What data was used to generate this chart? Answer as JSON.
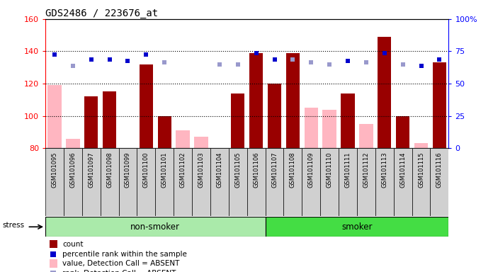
{
  "title": "GDS2486 / 223676_at",
  "samples": [
    "GSM101095",
    "GSM101096",
    "GSM101097",
    "GSM101098",
    "GSM101099",
    "GSM101100",
    "GSM101101",
    "GSM101102",
    "GSM101103",
    "GSM101104",
    "GSM101105",
    "GSM101106",
    "GSM101107",
    "GSM101108",
    "GSM101109",
    "GSM101110",
    "GSM101111",
    "GSM101112",
    "GSM101113",
    "GSM101114",
    "GSM101115",
    "GSM101116"
  ],
  "non_smoker_count": 12,
  "smoker_count": 10,
  "ylim_left": [
    80,
    160
  ],
  "ylim_right": [
    0,
    100
  ],
  "yticks_left": [
    80,
    100,
    120,
    140,
    160
  ],
  "yticks_right": [
    0,
    25,
    50,
    75,
    100
  ],
  "bar_color_present": "#990000",
  "bar_color_absent": "#FFB6C1",
  "dot_color_present": "#0000CC",
  "dot_color_absent": "#9999CC",
  "count_values": [
    null,
    null,
    112,
    115,
    null,
    132,
    100,
    null,
    null,
    null,
    114,
    139,
    120,
    139,
    null,
    null,
    114,
    null,
    149,
    100,
    null,
    133
  ],
  "value_absent": [
    119,
    86,
    null,
    null,
    null,
    null,
    null,
    91,
    87,
    null,
    null,
    null,
    null,
    null,
    105,
    104,
    null,
    95,
    null,
    null,
    83,
    null
  ],
  "rank_present": [
    138,
    null,
    135,
    135,
    134,
    138,
    null,
    null,
    null,
    null,
    null,
    139,
    135,
    null,
    null,
    null,
    134,
    null,
    139,
    null,
    131,
    135
  ],
  "rank_absent": [
    null,
    131,
    null,
    null,
    null,
    null,
    133,
    null,
    null,
    132,
    132,
    null,
    null,
    135,
    133,
    132,
    null,
    133,
    null,
    132,
    null,
    null
  ],
  "non_smoker_label": "non-smoker",
  "smoker_label": "smoker",
  "stress_label": "stress",
  "legend_labels": [
    "count",
    "percentile rank within the sample",
    "value, Detection Call = ABSENT",
    "rank, Detection Call = ABSENT"
  ],
  "tick_bg_color": "#C8C8C8",
  "ns_color": "#AAEAAA",
  "smoker_color": "#44DD44"
}
